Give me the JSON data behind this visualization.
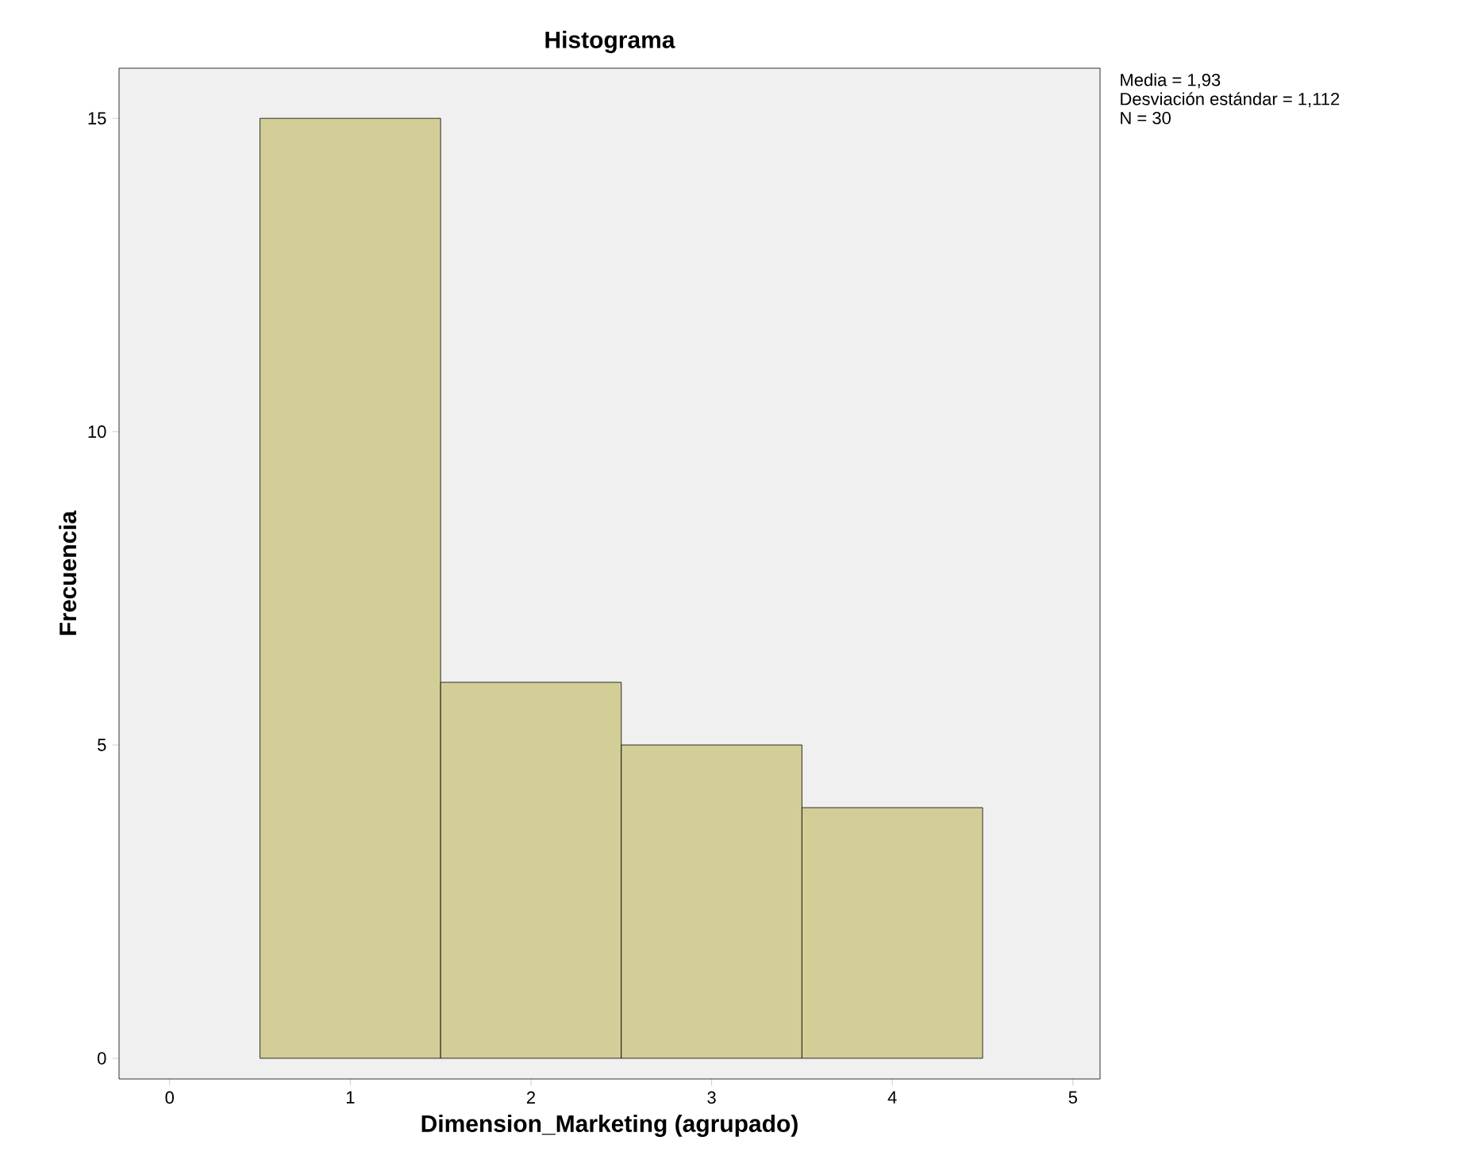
{
  "chart_data": {
    "type": "histogram",
    "title": "Histograma",
    "xlabel": "Dimension_Marketing (agrupado)",
    "ylabel": "Frecuencia",
    "bins": [
      0.5,
      1.5,
      2.5,
      3.5,
      4.5
    ],
    "values": [
      15,
      6,
      5,
      4
    ],
    "color": "#d3ce97",
    "xlim": [
      -0.28,
      5.15
    ],
    "ylim": [
      -0.33,
      15.8
    ],
    "xticks": [
      0,
      1,
      2,
      3,
      4,
      5
    ],
    "yticks": [
      0,
      5,
      10,
      15
    ],
    "grid": false,
    "annotations": [
      "Media = 1,93",
      "Desviación estándar = 1,112",
      "N = 30"
    ]
  }
}
